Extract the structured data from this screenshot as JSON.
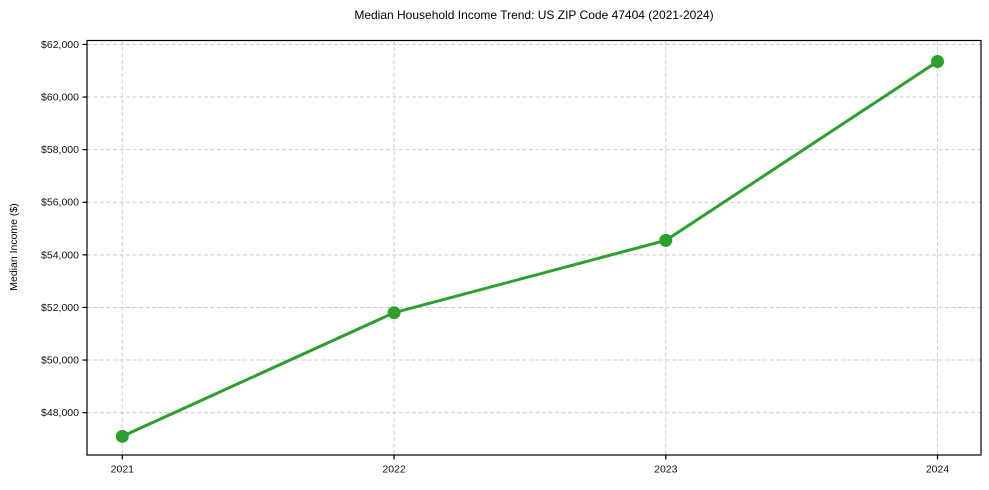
{
  "chart_data": {
    "type": "line",
    "title": "Median Household Income Trend: US ZIP Code 47404 (2021-2024)",
    "xlabel": "",
    "ylabel": "Median Income ($)",
    "x": [
      2021,
      2022,
      2023,
      2024
    ],
    "values": [
      47100,
      51800,
      54550,
      61350
    ],
    "xticks": [
      2021,
      2022,
      2023,
      2024
    ],
    "xtick_labels": [
      "2021",
      "2022",
      "2023",
      "2024"
    ],
    "yticks": [
      48000,
      50000,
      52000,
      54000,
      56000,
      58000,
      60000,
      62000
    ],
    "ytick_labels": [
      "$48,000",
      "$50,000",
      "$52,000",
      "$54,000",
      "$56,000",
      "$58,000",
      "$60,000",
      "$62,000"
    ],
    "xlim": [
      2020.87,
      2024.16
    ],
    "ylim": [
      46390,
      62150
    ],
    "grid": true,
    "grid_style": "dashed",
    "legend": false,
    "line_color": "#2ca02c",
    "marker": "circle",
    "marker_radius": 6.5,
    "line_width": 3
  }
}
